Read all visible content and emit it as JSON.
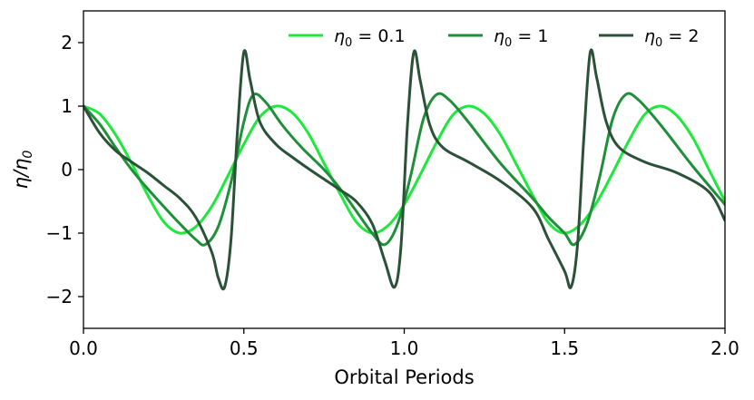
{
  "chart_data": {
    "type": "line",
    "xlabel": "Orbital Periods",
    "ylabel": "η/η",
    "ylabel_sub": "0",
    "xlim": [
      0.0,
      2.0
    ],
    "ylim": [
      -2.5,
      2.5
    ],
    "xticks": [
      0.0,
      0.5,
      1.0,
      1.5,
      2.0
    ],
    "xtick_labels": [
      "0.0",
      "0.5",
      "1.0",
      "1.5",
      "2.0"
    ],
    "yticks": [
      -2,
      -1,
      0,
      1,
      2
    ],
    "ytick_labels": [
      "−2",
      "−1",
      "0",
      "1",
      "2"
    ],
    "grid": false,
    "legend_placement": "top-right",
    "series": [
      {
        "name": "η",
        "name_sub": "0",
        "name_value": " = 0.1",
        "color": "#1ee83c",
        "x": [
          0.0,
          0.05,
          0.1,
          0.15,
          0.2,
          0.25,
          0.3,
          0.35,
          0.4,
          0.45,
          0.5,
          0.55,
          0.6,
          0.65,
          0.7,
          0.75,
          0.8,
          0.85,
          0.9,
          0.95,
          1.0,
          1.05,
          1.1,
          1.15,
          1.2,
          1.25,
          1.3,
          1.35,
          1.4,
          1.45,
          1.5,
          1.55,
          1.6,
          1.65,
          1.7,
          1.75,
          1.8,
          1.85,
          1.9,
          1.95,
          2.0
        ],
        "values": [
          1.0,
          0.88,
          0.55,
          0.1,
          -0.4,
          -0.82,
          -1.0,
          -0.9,
          -0.58,
          -0.1,
          0.4,
          0.83,
          1.0,
          0.9,
          0.58,
          0.1,
          -0.38,
          -0.82,
          -1.0,
          -0.88,
          -0.55,
          -0.08,
          0.42,
          0.85,
          1.0,
          0.88,
          0.55,
          0.08,
          -0.4,
          -0.84,
          -1.0,
          -0.86,
          -0.52,
          -0.05,
          0.45,
          0.87,
          1.0,
          0.85,
          0.5,
          0.0,
          -0.5
        ]
      },
      {
        "name": "η",
        "name_sub": "0",
        "name_value": " = 1",
        "color": "#1f8f3a",
        "x": [
          0.0,
          0.05,
          0.1,
          0.15,
          0.2,
          0.25,
          0.3,
          0.35,
          0.38,
          0.42,
          0.46,
          0.5,
          0.53,
          0.57,
          0.62,
          0.68,
          0.75,
          0.8,
          0.85,
          0.9,
          0.94,
          0.98,
          1.02,
          1.06,
          1.1,
          1.14,
          1.2,
          1.3,
          1.4,
          1.45,
          1.5,
          1.53,
          1.57,
          1.61,
          1.65,
          1.69,
          1.73,
          1.8,
          1.9,
          2.0
        ],
        "values": [
          1.0,
          0.72,
          0.35,
          0.0,
          -0.3,
          -0.58,
          -0.85,
          -1.1,
          -1.18,
          -0.9,
          -0.2,
          0.75,
          1.18,
          1.05,
          0.7,
          0.35,
          0.0,
          -0.3,
          -0.65,
          -1.0,
          -1.18,
          -0.85,
          -0.1,
          0.8,
          1.18,
          1.1,
          0.75,
          0.1,
          -0.45,
          -0.75,
          -1.0,
          -1.18,
          -0.85,
          -0.1,
          0.8,
          1.18,
          1.1,
          0.7,
          0.05,
          -0.55
        ]
      },
      {
        "name": "η",
        "name_sub": "0",
        "name_value": " = 2",
        "color": "#2b5238",
        "x": [
          0.0,
          0.05,
          0.1,
          0.15,
          0.2,
          0.25,
          0.3,
          0.35,
          0.4,
          0.42,
          0.44,
          0.46,
          0.48,
          0.5,
          0.52,
          0.55,
          0.6,
          0.65,
          0.7,
          0.75,
          0.8,
          0.85,
          0.9,
          0.94,
          0.97,
          0.99,
          1.01,
          1.03,
          1.05,
          1.08,
          1.12,
          1.2,
          1.3,
          1.4,
          1.45,
          1.5,
          1.52,
          1.54,
          1.56,
          1.58,
          1.6,
          1.63,
          1.67,
          1.75,
          1.85,
          1.95,
          2.0
        ],
        "values": [
          1.0,
          0.58,
          0.3,
          0.12,
          -0.05,
          -0.25,
          -0.45,
          -0.75,
          -1.3,
          -1.7,
          -1.85,
          -1.1,
          0.6,
          1.85,
          1.4,
          0.75,
          0.4,
          0.2,
          0.02,
          -0.15,
          -0.32,
          -0.5,
          -0.85,
          -1.45,
          -1.85,
          -1.2,
          0.7,
          1.85,
          1.4,
          0.7,
          0.35,
          0.12,
          -0.18,
          -0.6,
          -1.1,
          -1.6,
          -1.85,
          -1.2,
          0.5,
          1.85,
          1.45,
          0.75,
          0.35,
          0.12,
          -0.05,
          -0.35,
          -0.8
        ]
      }
    ]
  }
}
